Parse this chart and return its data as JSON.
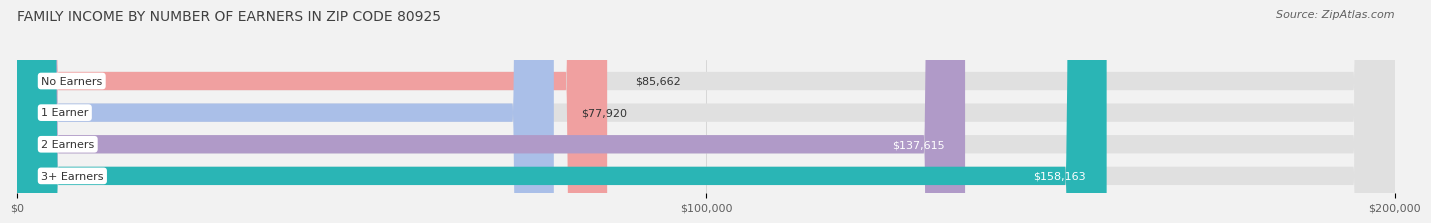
{
  "title": "FAMILY INCOME BY NUMBER OF EARNERS IN ZIP CODE 80925",
  "source": "Source: ZipAtlas.com",
  "categories": [
    "No Earners",
    "1 Earner",
    "2 Earners",
    "3+ Earners"
  ],
  "values": [
    85662,
    77920,
    137615,
    158163
  ],
  "value_labels": [
    "$85,662",
    "$77,920",
    "$137,615",
    "$158,163"
  ],
  "bar_colors": [
    "#f0a0a0",
    "#aabfe8",
    "#b09ac8",
    "#2ab5b5"
  ],
  "xlim": [
    0,
    200000
  ],
  "xtick_values": [
    0,
    100000,
    200000
  ],
  "xtick_labels": [
    "$0",
    "$100,000",
    "$200,000"
  ],
  "bg_color": "#f2f2f2",
  "bar_bg_color": "#e0e0e0",
  "title_fontsize": 10,
  "source_fontsize": 8,
  "bar_height": 0.58,
  "title_color": "#404040",
  "source_color": "#606060",
  "tick_label_color": "#606060"
}
